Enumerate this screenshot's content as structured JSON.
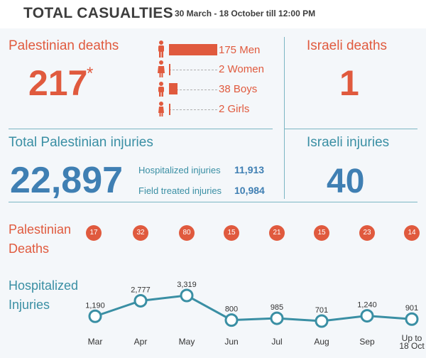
{
  "header": {
    "title": "TOTAL CASUALTIES",
    "date_range": "30 March - 18 October till 12:00 PM"
  },
  "palestinian_deaths": {
    "label": "Palestinian deaths",
    "value": "217",
    "asterisk": "*",
    "breakdown": [
      {
        "label": "175 Men",
        "count": 175
      },
      {
        "label": "2 Women",
        "count": 2
      },
      {
        "label": "38 Boys",
        "count": 38
      },
      {
        "label": "2 Girls",
        "count": 2
      }
    ]
  },
  "israeli_deaths": {
    "label": "Israeli deaths",
    "value": "1"
  },
  "palestinian_injuries": {
    "label": "Total Palestinian injuries",
    "value": "22,897",
    "hospitalized_label": "Hospitalized injuries",
    "hospitalized_value": "11,913",
    "field_label": "Field treated injuries",
    "field_value": "10,984"
  },
  "israeli_injuries": {
    "label": "Israeli injuries",
    "value": "40"
  },
  "deaths_row": {
    "label_line1": "Palestinian",
    "label_line2": "Deaths",
    "values": [
      "17",
      "32",
      "80",
      "15",
      "21",
      "15",
      "23",
      "14"
    ]
  },
  "injuries_row": {
    "label_line1": "Hospitalized",
    "label_line2": "Injuries"
  },
  "colors": {
    "red": "#e05a3e",
    "blue": "#3f7fb3",
    "teal": "#3a8fa4"
  },
  "chart_data": {
    "type": "line",
    "title": "",
    "xlabel": "",
    "ylabel": "",
    "categories": [
      "Mar",
      "Apr",
      "May",
      "Jun",
      "Jul",
      "Aug",
      "Sep",
      "Up to 18 Oct"
    ],
    "values": [
      1190,
      2777,
      3319,
      800,
      985,
      701,
      1240,
      901
    ],
    "value_labels": [
      "1,190",
      "2,777",
      "3,319",
      "800",
      "985",
      "701",
      "1,240",
      "901"
    ],
    "series": [
      {
        "values": [
          1190,
          2777,
          3319,
          800,
          985,
          701,
          1240,
          901
        ]
      }
    ],
    "grid": false,
    "legend": "none"
  }
}
